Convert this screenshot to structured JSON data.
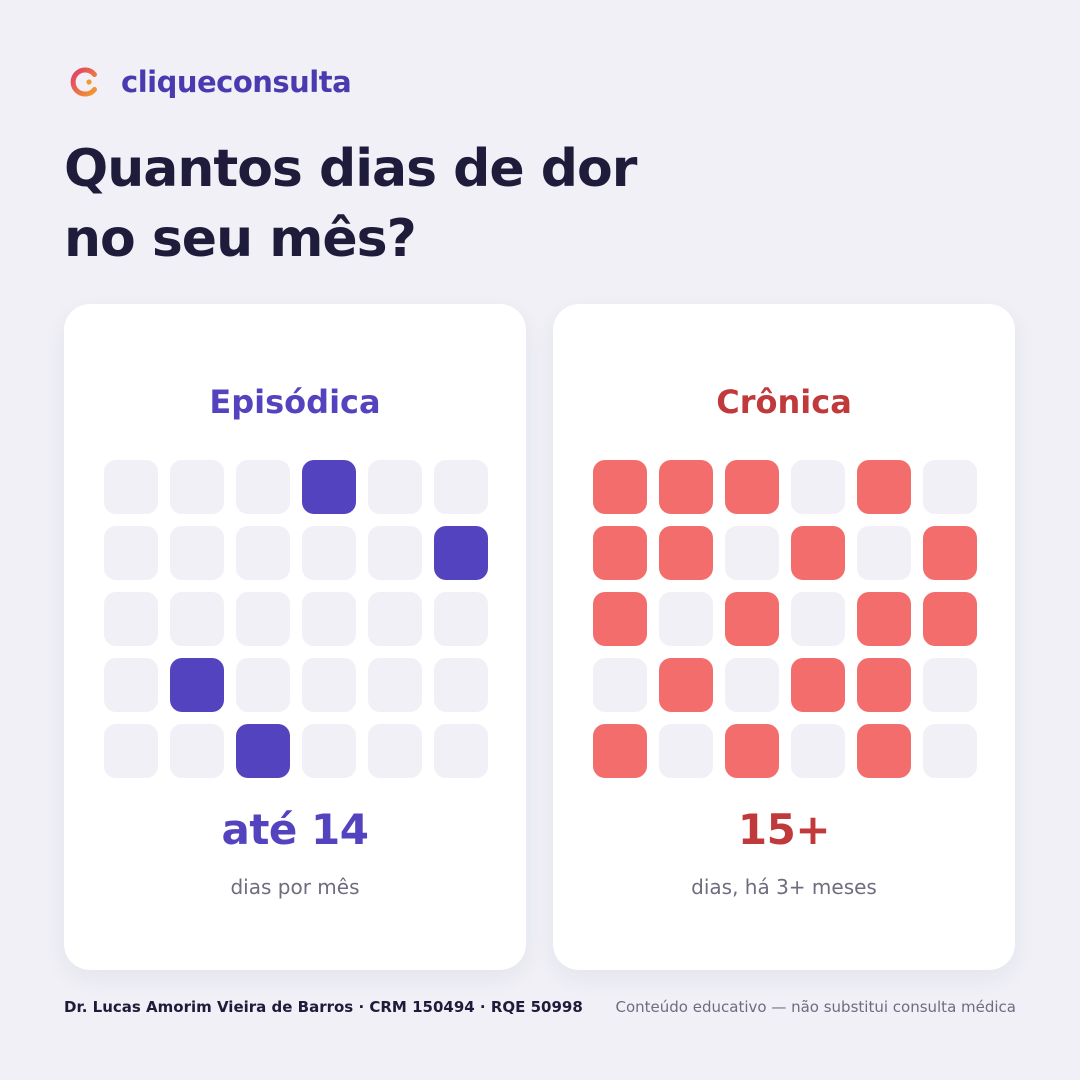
{
  "brand": {
    "name": "cliqueconsulta",
    "logo_icon": "c-ring-logo-icon",
    "logo_gradient": [
      "#E23B6B",
      "#F39A2C"
    ],
    "color": "#4A3AB0"
  },
  "headline": {
    "line1": "Quantos dias de dor",
    "line2": "no seu mês?"
  },
  "cards": [
    {
      "title": "Episódica",
      "accent": "#5443BE",
      "title_color": "#5443BE",
      "value": "até 14",
      "caption": "dias por mês",
      "grid": [
        [
          0,
          0,
          0,
          1,
          0,
          0
        ],
        [
          0,
          0,
          0,
          0,
          0,
          1
        ],
        [
          0,
          0,
          0,
          0,
          0,
          0
        ],
        [
          0,
          1,
          0,
          0,
          0,
          0
        ],
        [
          0,
          0,
          1,
          0,
          0,
          0
        ]
      ]
    },
    {
      "title": "Crônica",
      "accent": "#F36D6D",
      "title_color": "#C0393B",
      "value": "15+",
      "caption": "dias, há 3+ meses",
      "grid": [
        [
          1,
          1,
          1,
          0,
          1,
          0
        ],
        [
          1,
          1,
          0,
          1,
          0,
          1
        ],
        [
          1,
          0,
          1,
          0,
          1,
          1
        ],
        [
          0,
          1,
          0,
          1,
          1,
          0
        ],
        [
          1,
          0,
          1,
          0,
          1,
          0
        ]
      ]
    }
  ],
  "colors": {
    "background": "#F0F0F6",
    "empty_cell": "#F0F0F6",
    "card": "#FFFFFF",
    "text_dark": "#1F1B3A",
    "text_muted": "#6E6D80"
  },
  "footer": {
    "author": "Dr. Lucas Amorim Vieira de Barros · CRM 150494 · RQE 50998",
    "disclaimer": "Conteúdo educativo — não substitui consulta médica"
  }
}
